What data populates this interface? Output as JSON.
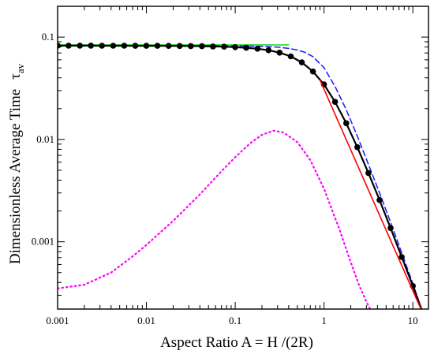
{
  "chart_data": {
    "type": "line",
    "title": "",
    "xlabel": "Aspect  Ratio    A = H /(2R)",
    "ylabel_main": "Dimensionless  Average  Time",
    "ylabel_symbol": "τ",
    "ylabel_subscript": "av",
    "x_scale": "log",
    "y_scale": "log",
    "xlim": [
      0.001,
      15
    ],
    "ylim": [
      0.00022,
      0.2
    ],
    "grid": false,
    "legend": "none",
    "x_ticks": [
      {
        "value": 0.001,
        "label": "0.001"
      },
      {
        "value": 0.01,
        "label": "0.01"
      },
      {
        "value": 0.1,
        "label": "0.1"
      },
      {
        "value": 1,
        "label": "1"
      },
      {
        "value": 10,
        "label": "10"
      }
    ],
    "y_ticks": [
      {
        "value": 0.001,
        "label": "0.001"
      },
      {
        "value": 0.01,
        "label": "0.01"
      },
      {
        "value": 0.1,
        "label": "0.1"
      }
    ],
    "series": [
      {
        "style": "solid-markers",
        "color": "#000000",
        "x": [
          0.001,
          0.00133,
          0.00178,
          0.00237,
          0.00316,
          0.00422,
          0.00562,
          0.0075,
          0.01,
          0.0133,
          0.0178,
          0.0237,
          0.0316,
          0.0422,
          0.0562,
          0.075,
          0.1,
          0.133,
          0.178,
          0.237,
          0.316,
          0.422,
          0.562,
          0.75,
          1.0,
          1.33,
          1.78,
          2.37,
          3.16,
          4.22,
          5.62,
          7.5,
          10.0,
          13.3
        ],
        "y": [
          0.0825,
          0.0825,
          0.0825,
          0.0825,
          0.0824,
          0.0824,
          0.0824,
          0.0823,
          0.0823,
          0.0822,
          0.0821,
          0.082,
          0.0818,
          0.0815,
          0.0811,
          0.0806,
          0.0798,
          0.0786,
          0.077,
          0.0744,
          0.0705,
          0.0648,
          0.0567,
          0.0461,
          0.0345,
          0.0233,
          0.0144,
          0.0084,
          0.0047,
          0.00256,
          0.00136,
          0.00071,
          0.00037,
          0.00019
        ]
      },
      {
        "style": "dashed",
        "color": "#1a1aff",
        "x": [
          0.001,
          0.01,
          0.1,
          0.2,
          0.3,
          0.4,
          0.5,
          0.6,
          0.75,
          1.0,
          1.33,
          1.78,
          2.37,
          3.16,
          4.22,
          5.62,
          7.5,
          10.0,
          13.3
        ],
        "y": [
          0.0827,
          0.0827,
          0.0822,
          0.0812,
          0.0798,
          0.0776,
          0.0748,
          0.0713,
          0.0645,
          0.0503,
          0.0329,
          0.0195,
          0.0108,
          0.0057,
          0.003,
          0.00155,
          0.00078,
          0.00039,
          0.00019
        ]
      },
      {
        "style": "dotted",
        "color": "#ff00ff",
        "x": [
          0.001,
          0.002,
          0.004,
          0.007,
          0.01,
          0.02,
          0.04,
          0.07,
          0.1,
          0.15,
          0.2,
          0.27,
          0.35,
          0.5,
          0.7,
          1.0,
          1.5,
          2.0,
          2.5,
          3.0,
          3.5
        ],
        "y": [
          0.00035,
          0.00038,
          0.0005,
          0.00072,
          0.00093,
          0.0016,
          0.0029,
          0.0049,
          0.0067,
          0.0093,
          0.0111,
          0.0122,
          0.0117,
          0.0094,
          0.0063,
          0.0033,
          0.0013,
          0.00063,
          0.00037,
          0.00026,
          0.0002
        ]
      },
      {
        "style": "solid",
        "color": "#22dd22",
        "x": [
          0.001,
          0.4
        ],
        "y": [
          0.084,
          0.084
        ]
      },
      {
        "style": "solid",
        "color": "#ff0000",
        "x": [
          0.9,
          13.3
        ],
        "y": [
          0.038,
          0.00019
        ]
      }
    ]
  }
}
